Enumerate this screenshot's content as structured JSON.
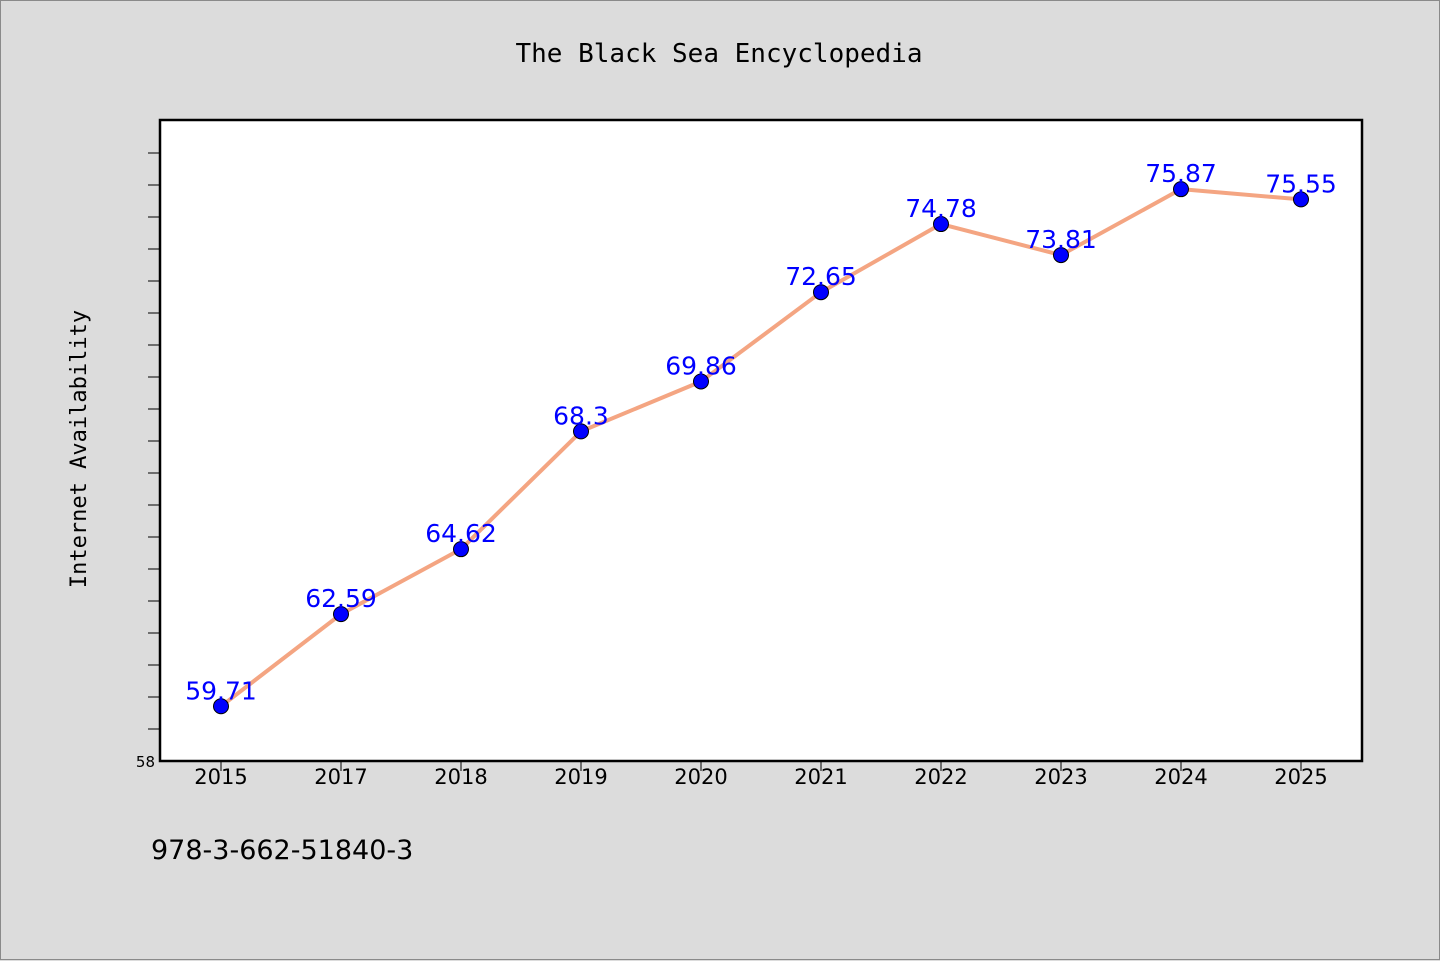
{
  "chart_data": {
    "type": "line",
    "title": "The Black Sea Encyclopedia",
    "xlabel": "",
    "ylabel": "Internet Availability",
    "categories": [
      "2015",
      "2017",
      "2018",
      "2019",
      "2020",
      "2021",
      "2022",
      "2023",
      "2024",
      "2025"
    ],
    "series": [
      {
        "values": [
          59.71,
          62.59,
          64.62,
          68.3,
          69.86,
          72.65,
          74.78,
          73.81,
          75.87,
          75.55
        ],
        "labels": [
          "59.71",
          "62.59",
          "64.62",
          "68.3",
          "69.86",
          "72.65",
          "74.78",
          "73.81",
          "75.87",
          "75.55"
        ]
      }
    ],
    "ylim": [
      58,
      78
    ],
    "y_tick_labels": [
      "58"
    ],
    "grid": false,
    "line_color": "#f4a582",
    "marker_color": "#0000ff",
    "label_color": "#0000ff"
  },
  "footer": {
    "identifier": "978-3-662-51840-3"
  }
}
